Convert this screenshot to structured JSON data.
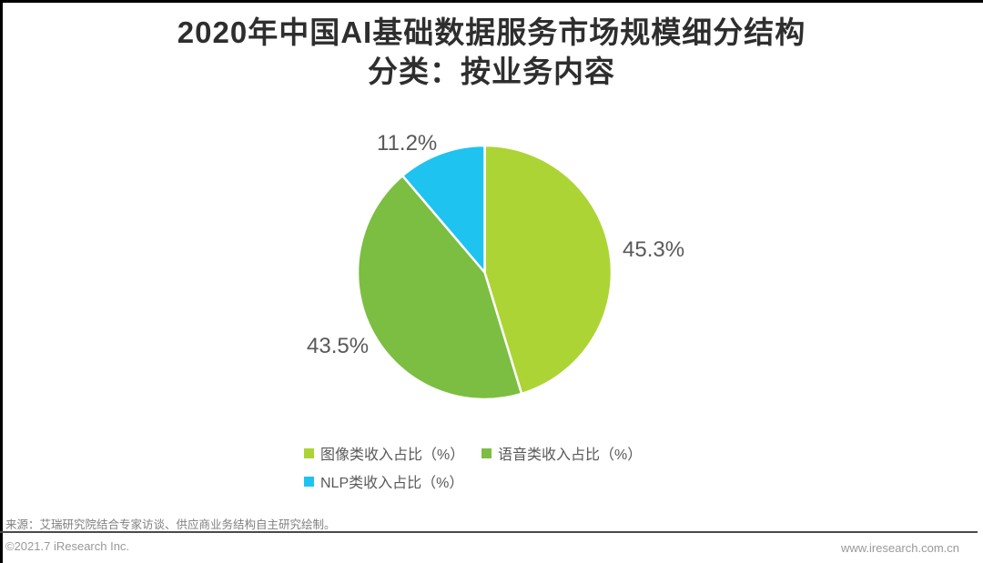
{
  "header": {
    "title_line1": "2020年中国AI基础数据服务市场规模细分结构",
    "title_line2": "分类：按业务内容"
  },
  "chart_data": {
    "type": "pie",
    "title": "2020年中国AI基础数据服务市场规模细分结构 分类：按业务内容",
    "start_angle_deg": 0,
    "direction": "clockwise",
    "legend_position": "bottom-center",
    "slice_separator_color": "#ffffff",
    "label_color": "#595959",
    "slices": [
      {
        "name": "图像类收入占比（%）",
        "value": 45.3,
        "label": "45.3%",
        "color": "#acd435"
      },
      {
        "name": "语音类收入占比（%）",
        "value": 43.5,
        "label": "43.5%",
        "color": "#7cbe41"
      },
      {
        "name": "NLP类收入占比（%）",
        "value": 11.2,
        "label": "11.2%",
        "color": "#1ec3f0"
      }
    ]
  },
  "footer": {
    "source": "来源：艾瑞研究院结合专家访谈、供应商业务结构自主研究绘制。",
    "copyright": "©2021.7 iResearch Inc.",
    "website": "www.iresearch.com.cn"
  }
}
